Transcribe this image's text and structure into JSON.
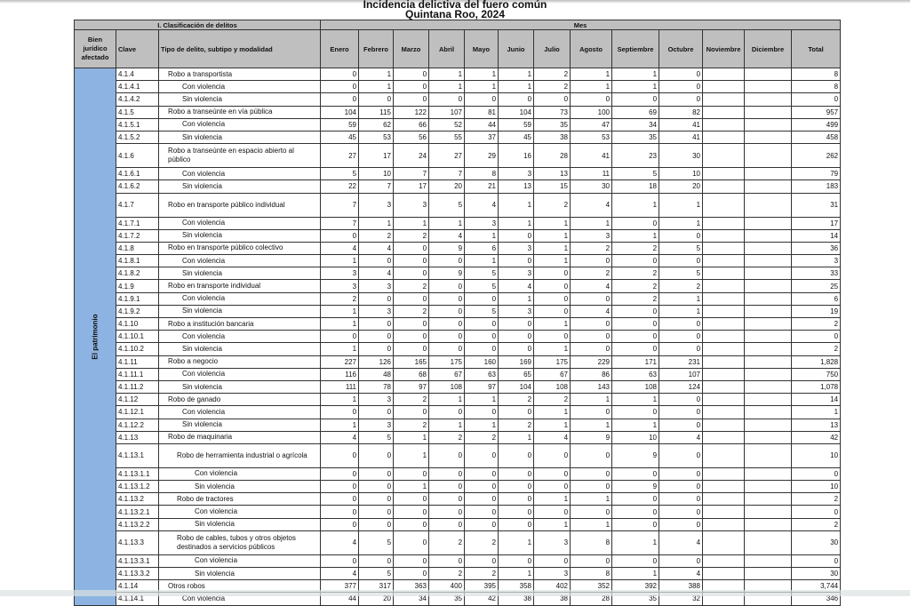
{
  "header": {
    "title": "Incidencia delictiva del fuero común",
    "subtitle": "Quintana Roo, 2024"
  },
  "table": {
    "group_clasificacion": "I. Clasificación de delitos",
    "group_mes": "Mes",
    "columns": [
      "Bien jurídico afectado",
      "Clave",
      "Tipo de delito, subtipo y modalidad",
      "Enero",
      "Febrero",
      "Marzo",
      "Abril",
      "Mayo",
      "Junio",
      "Julio",
      "Agosto",
      "Septiembre",
      "Octubre",
      "Noviembre",
      "Diciembre",
      "Total"
    ],
    "bien_juridico": "El patrimonio",
    "colors": {
      "header_bg": "#bfbfbf",
      "bien_bg": "#8db3e2"
    },
    "rows": [
      {
        "clave": "4.1.4",
        "tipo": "Robo a transportista",
        "level": 0,
        "values": [
          "0",
          "1",
          "0",
          "1",
          "1",
          "1",
          "2",
          "1",
          "1",
          "0",
          "",
          ""
        ],
        "total": "8"
      },
      {
        "clave": "4.1.4.1",
        "tipo": "Con violencia",
        "level": 1,
        "values": [
          "0",
          "1",
          "0",
          "1",
          "1",
          "1",
          "2",
          "1",
          "1",
          "0",
          "",
          ""
        ],
        "total": "8"
      },
      {
        "clave": "4.1.4.2",
        "tipo": "Sin violencia",
        "level": 1,
        "values": [
          "0",
          "0",
          "0",
          "0",
          "0",
          "0",
          "0",
          "0",
          "0",
          "0",
          "",
          ""
        ],
        "total": "0"
      },
      {
        "clave": "4.1.5",
        "tipo": "Robo a transeúnte en vía pública",
        "level": 0,
        "values": [
          "104",
          "115",
          "122",
          "107",
          "81",
          "104",
          "73",
          "100",
          "69",
          "82",
          "",
          ""
        ],
        "total": "957"
      },
      {
        "clave": "4.1.5.1",
        "tipo": "Con violencia",
        "level": 1,
        "values": [
          "59",
          "62",
          "66",
          "52",
          "44",
          "59",
          "35",
          "47",
          "34",
          "41",
          "",
          ""
        ],
        "total": "499"
      },
      {
        "clave": "4.1.5.2",
        "tipo": "Sin violencia",
        "level": 1,
        "values": [
          "45",
          "53",
          "56",
          "55",
          "37",
          "45",
          "38",
          "53",
          "35",
          "41",
          "",
          ""
        ],
        "total": "458"
      },
      {
        "clave": "4.1.6",
        "tipo": "Robo a transeúnte en espacio abierto al público",
        "level": 0,
        "tall": true,
        "values": [
          "27",
          "17",
          "24",
          "27",
          "29",
          "16",
          "28",
          "41",
          "23",
          "30",
          "",
          ""
        ],
        "total": "262"
      },
      {
        "clave": "4.1.6.1",
        "tipo": "Con violencia",
        "level": 1,
        "values": [
          "5",
          "10",
          "7",
          "7",
          "8",
          "3",
          "13",
          "11",
          "5",
          "10",
          "",
          ""
        ],
        "total": "79"
      },
      {
        "clave": "4.1.6.2",
        "tipo": "Sin violencia",
        "level": 1,
        "values": [
          "22",
          "7",
          "17",
          "20",
          "21",
          "13",
          "15",
          "30",
          "18",
          "20",
          "",
          ""
        ],
        "total": "183"
      },
      {
        "clave": "4.1.7",
        "tipo": "Robo en transporte público individual",
        "level": 0,
        "tall": true,
        "values": [
          "7",
          "3",
          "3",
          "5",
          "4",
          "1",
          "2",
          "4",
          "1",
          "1",
          "",
          ""
        ],
        "total": "31"
      },
      {
        "clave": "4.1.7.1",
        "tipo": "Con violencia",
        "level": 1,
        "values": [
          "7",
          "1",
          "1",
          "1",
          "3",
          "1",
          "1",
          "1",
          "0",
          "1",
          "",
          ""
        ],
        "total": "17"
      },
      {
        "clave": "4.1.7.2",
        "tipo": "Sin violencia",
        "level": 1,
        "values": [
          "0",
          "2",
          "2",
          "4",
          "1",
          "0",
          "1",
          "3",
          "1",
          "0",
          "",
          ""
        ],
        "total": "14"
      },
      {
        "clave": "4.1.8",
        "tipo": "Robo en transporte público colectivo",
        "level": 0,
        "values": [
          "4",
          "4",
          "0",
          "9",
          "6",
          "3",
          "1",
          "2",
          "2",
          "5",
          "",
          ""
        ],
        "total": "36"
      },
      {
        "clave": "4.1.8.1",
        "tipo": "Con violencia",
        "level": 1,
        "values": [
          "1",
          "0",
          "0",
          "0",
          "1",
          "0",
          "1",
          "0",
          "0",
          "0",
          "",
          ""
        ],
        "total": "3"
      },
      {
        "clave": "4.1.8.2",
        "tipo": "Sin violencia",
        "level": 1,
        "values": [
          "3",
          "4",
          "0",
          "9",
          "5",
          "3",
          "0",
          "2",
          "2",
          "5",
          "",
          ""
        ],
        "total": "33"
      },
      {
        "clave": "4.1.9",
        "tipo": "Robo en transporte individual",
        "level": 0,
        "values": [
          "3",
          "3",
          "2",
          "0",
          "5",
          "4",
          "0",
          "4",
          "2",
          "2",
          "",
          ""
        ],
        "total": "25"
      },
      {
        "clave": "4.1.9.1",
        "tipo": "Con violencia",
        "level": 1,
        "values": [
          "2",
          "0",
          "0",
          "0",
          "0",
          "1",
          "0",
          "0",
          "2",
          "1",
          "",
          ""
        ],
        "total": "6"
      },
      {
        "clave": "4.1.9.2",
        "tipo": "Sin violencia",
        "level": 1,
        "values": [
          "1",
          "3",
          "2",
          "0",
          "5",
          "3",
          "0",
          "4",
          "0",
          "1",
          "",
          ""
        ],
        "total": "19"
      },
      {
        "clave": "4.1.10",
        "tipo": "Robo a institución bancaria",
        "level": 0,
        "values": [
          "1",
          "0",
          "0",
          "0",
          "0",
          "0",
          "1",
          "0",
          "0",
          "0",
          "",
          ""
        ],
        "total": "2"
      },
      {
        "clave": "4.1.10.1",
        "tipo": "Con violencia",
        "level": 1,
        "values": [
          "0",
          "0",
          "0",
          "0",
          "0",
          "0",
          "0",
          "0",
          "0",
          "0",
          "",
          ""
        ],
        "total": "0"
      },
      {
        "clave": "4.1.10.2",
        "tipo": "Sin violencia",
        "level": 1,
        "values": [
          "1",
          "0",
          "0",
          "0",
          "0",
          "0",
          "1",
          "0",
          "0",
          "0",
          "",
          ""
        ],
        "total": "2"
      },
      {
        "clave": "4.1.11",
        "tipo": "Robo a negocio",
        "level": 0,
        "values": [
          "227",
          "126",
          "165",
          "175",
          "160",
          "169",
          "175",
          "229",
          "171",
          "231",
          "",
          ""
        ],
        "total": "1,828"
      },
      {
        "clave": "4.1.11.1",
        "tipo": "Con violencia",
        "level": 1,
        "values": [
          "116",
          "48",
          "68",
          "67",
          "63",
          "65",
          "67",
          "86",
          "63",
          "107",
          "",
          ""
        ],
        "total": "750"
      },
      {
        "clave": "4.1.11.2",
        "tipo": "Sin violencia",
        "level": 1,
        "values": [
          "111",
          "78",
          "97",
          "108",
          "97",
          "104",
          "108",
          "143",
          "108",
          "124",
          "",
          ""
        ],
        "total": "1,078"
      },
      {
        "clave": "4.1.12",
        "tipo": "Robo de ganado",
        "level": 0,
        "values": [
          "1",
          "3",
          "2",
          "1",
          "1",
          "2",
          "2",
          "1",
          "1",
          "0",
          "",
          ""
        ],
        "total": "14"
      },
      {
        "clave": "4.1.12.1",
        "tipo": "Con violencia",
        "level": 1,
        "values": [
          "0",
          "0",
          "0",
          "0",
          "0",
          "0",
          "1",
          "0",
          "0",
          "0",
          "",
          ""
        ],
        "total": "1"
      },
      {
        "clave": "4.1.12.2",
        "tipo": "Sin violencia",
        "level": 1,
        "values": [
          "1",
          "3",
          "2",
          "1",
          "1",
          "2",
          "1",
          "1",
          "1",
          "0",
          "",
          ""
        ],
        "total": "13"
      },
      {
        "clave": "4.1.13",
        "tipo": "Robo de maquinaria",
        "level": 0,
        "values": [
          "4",
          "5",
          "1",
          "2",
          "2",
          "1",
          "4",
          "9",
          "10",
          "4",
          "",
          ""
        ],
        "total": "42"
      },
      {
        "clave": "4.1.13.1",
        "tipo": "Robo de herramienta industrial o agrícola",
        "level": 2,
        "tall": true,
        "values": [
          "0",
          "0",
          "1",
          "0",
          "0",
          "0",
          "0",
          "0",
          "9",
          "0",
          "",
          ""
        ],
        "total": "10"
      },
      {
        "clave": "4.1.13.1.1",
        "tipo": "Con violencia",
        "level": 3,
        "values": [
          "0",
          "0",
          "0",
          "0",
          "0",
          "0",
          "0",
          "0",
          "0",
          "0",
          "",
          ""
        ],
        "total": "0"
      },
      {
        "clave": "4.1.13.1.2",
        "tipo": "Sin violencia",
        "level": 3,
        "values": [
          "0",
          "0",
          "1",
          "0",
          "0",
          "0",
          "0",
          "0",
          "9",
          "0",
          "",
          ""
        ],
        "total": "10"
      },
      {
        "clave": "4.1.13.2",
        "tipo": "Robo de tractores",
        "level": 2,
        "values": [
          "0",
          "0",
          "0",
          "0",
          "0",
          "0",
          "1",
          "1",
          "0",
          "0",
          "",
          ""
        ],
        "total": "2"
      },
      {
        "clave": "4.1.13.2.1",
        "tipo": "Con violencia",
        "level": 3,
        "values": [
          "0",
          "0",
          "0",
          "0",
          "0",
          "0",
          "0",
          "0",
          "0",
          "0",
          "",
          ""
        ],
        "total": "0"
      },
      {
        "clave": "4.1.13.2.2",
        "tipo": "Sin violencia",
        "level": 3,
        "values": [
          "0",
          "0",
          "0",
          "0",
          "0",
          "0",
          "1",
          "1",
          "0",
          "0",
          "",
          ""
        ],
        "total": "2"
      },
      {
        "clave": "4.1.13.3",
        "tipo": "Robo de cables, tubos y otros objetos destinados a servicios públicos",
        "level": 2,
        "tall": true,
        "values": [
          "4",
          "5",
          "0",
          "2",
          "2",
          "1",
          "3",
          "8",
          "1",
          "4",
          "",
          ""
        ],
        "total": "30"
      },
      {
        "clave": "4.1.13.3.1",
        "tipo": "Con violencia",
        "level": 3,
        "values": [
          "0",
          "0",
          "0",
          "0",
          "0",
          "0",
          "0",
          "0",
          "0",
          "0",
          "",
          ""
        ],
        "total": "0"
      },
      {
        "clave": "4.1.13.3.2",
        "tipo": "Sin violencia",
        "level": 3,
        "values": [
          "4",
          "5",
          "0",
          "2",
          "2",
          "1",
          "3",
          "8",
          "1",
          "4",
          "",
          ""
        ],
        "total": "30"
      },
      {
        "clave": "4.1.14",
        "tipo": "Otros robos",
        "level": 0,
        "values": [
          "377",
          "317",
          "363",
          "400",
          "395",
          "358",
          "402",
          "352",
          "392",
          "388",
          "",
          ""
        ],
        "total": "3,744"
      },
      {
        "clave": "4.1.14.1",
        "tipo": "Con violencia",
        "level": 1,
        "values": [
          "44",
          "20",
          "34",
          "35",
          "42",
          "38",
          "38",
          "28",
          "35",
          "32",
          "",
          ""
        ],
        "total": "346"
      }
    ]
  }
}
